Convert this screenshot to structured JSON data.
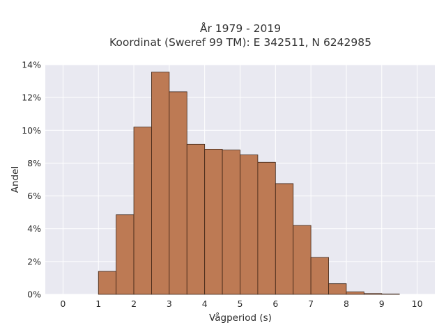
{
  "chart_data": {
    "type": "bar",
    "title_lines": [
      "År 1979 - 2019",
      "Koordinat (Sweref 99 TM): E 342511, N 6242985"
    ],
    "xlabel": "Vågperiod (s)",
    "ylabel": "Andel",
    "bin_width": 0.5,
    "bins": [
      {
        "x0": 0.0,
        "value": 0.0
      },
      {
        "x0": 0.5,
        "value": 0.0
      },
      {
        "x0": 1.0,
        "value": 1.4
      },
      {
        "x0": 1.5,
        "value": 4.85
      },
      {
        "x0": 2.0,
        "value": 10.2
      },
      {
        "x0": 2.5,
        "value": 13.55
      },
      {
        "x0": 3.0,
        "value": 12.35
      },
      {
        "x0": 3.5,
        "value": 9.15
      },
      {
        "x0": 4.0,
        "value": 8.85
      },
      {
        "x0": 4.5,
        "value": 8.8
      },
      {
        "x0": 5.0,
        "value": 8.5
      },
      {
        "x0": 5.5,
        "value": 8.05
      },
      {
        "x0": 6.0,
        "value": 6.75
      },
      {
        "x0": 6.5,
        "value": 4.2
      },
      {
        "x0": 7.0,
        "value": 2.25
      },
      {
        "x0": 7.5,
        "value": 0.65
      },
      {
        "x0": 8.0,
        "value": 0.15
      },
      {
        "x0": 8.5,
        "value": 0.05
      },
      {
        "x0": 9.0,
        "value": 0.02
      },
      {
        "x0": 9.5,
        "value": 0.0
      }
    ],
    "xlim": [
      -0.5,
      10.5
    ],
    "ylim": [
      0,
      14
    ],
    "x_ticks": [
      0,
      1,
      2,
      3,
      4,
      5,
      6,
      7,
      8,
      9,
      10
    ],
    "x_tick_labels": [
      "0",
      "1",
      "2",
      "3",
      "4",
      "5",
      "6",
      "7",
      "8",
      "9",
      "10"
    ],
    "y_ticks": [
      0,
      2,
      4,
      6,
      8,
      10,
      12,
      14
    ],
    "y_tick_labels": [
      "0%",
      "2%",
      "4%",
      "6%",
      "8%",
      "10%",
      "12%",
      "14%"
    ],
    "grid": true,
    "colors": {
      "bar_fill": "#bd7a54",
      "bar_edge": "#3d2416",
      "plot_bg": "#e9e9f1",
      "grid": "#ffffff"
    }
  }
}
